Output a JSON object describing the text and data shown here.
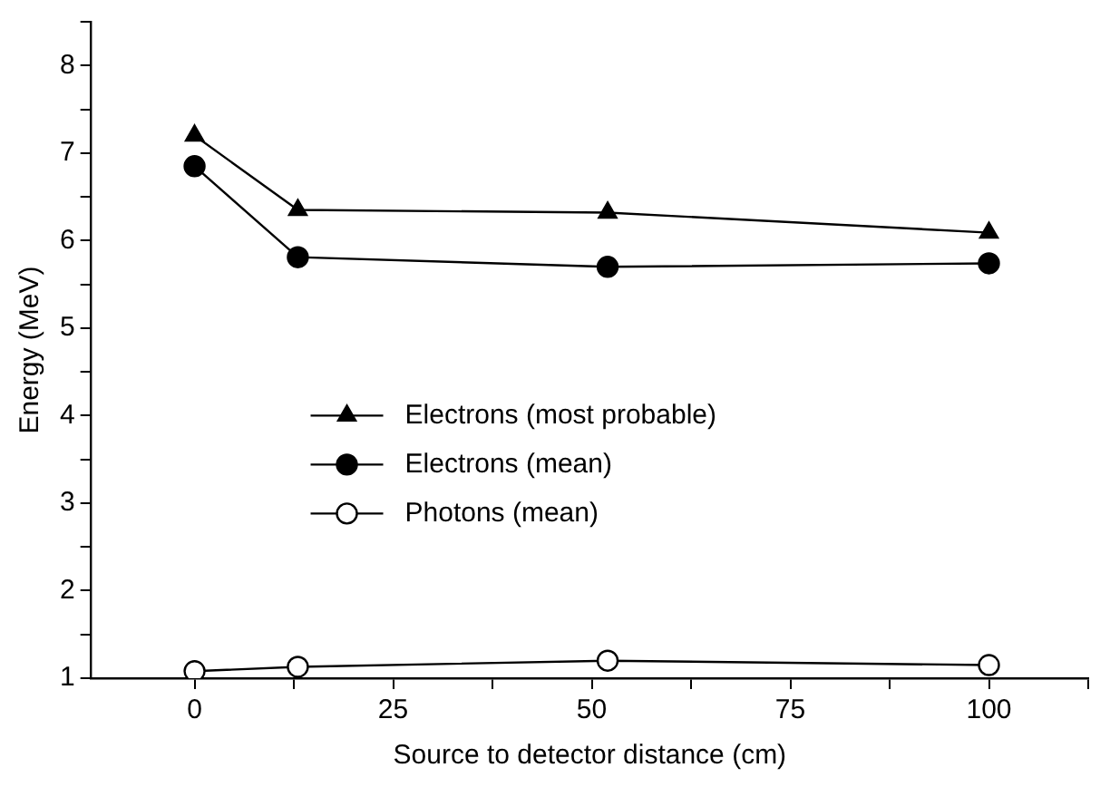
{
  "chart_data": {
    "type": "line",
    "xlabel": "Source to detector distance (cm)",
    "ylabel": "Energy (MeV)",
    "x": [
      0,
      13,
      52,
      100
    ],
    "series": [
      {
        "name": "Electrons (most probable)",
        "color": "#000000",
        "marker": "triangle",
        "values": [
          7.2,
          6.35,
          6.32,
          6.09
        ]
      },
      {
        "name": "Electrons (mean)",
        "color": "#000000",
        "marker": "circle",
        "values": [
          6.85,
          5.81,
          5.7,
          5.74
        ]
      },
      {
        "name": "Photons (mean)",
        "color": "#000000",
        "marker": "circle",
        "colors": [
          "#ffffff",
          "#ffffff",
          "#ffffff",
          "#ffffff"
        ],
        "values": [
          1.08,
          1.13,
          1.2,
          1.15
        ]
      }
    ],
    "xlim": [
      -13,
      112.5
    ],
    "xticks": [
      0,
      {
        "value": 12.5,
        "label": null
      },
      25,
      {
        "value": 37.5,
        "label": null
      },
      50,
      {
        "value": 62.5,
        "label": null
      },
      75,
      {
        "value": 87.5,
        "label": null
      },
      100,
      {
        "value": 112.5,
        "label": null
      }
    ],
    "ylim": [
      1,
      8.5
    ],
    "yticks": [
      1,
      {
        "value": 1.5,
        "label": null
      },
      2,
      {
        "value": 2.5,
        "label": null
      },
      3,
      {
        "value": 3.5,
        "label": null
      },
      4,
      {
        "value": 4.5,
        "label": null
      },
      5,
      {
        "value": 5.5,
        "label": null
      },
      6,
      {
        "value": 6.5,
        "label": null
      },
      7,
      {
        "value": 7.5,
        "label": null
      },
      8,
      {
        "value": 8.5,
        "label": null
      }
    ],
    "grid": false,
    "legend": "center left",
    "line_style": "solid"
  }
}
